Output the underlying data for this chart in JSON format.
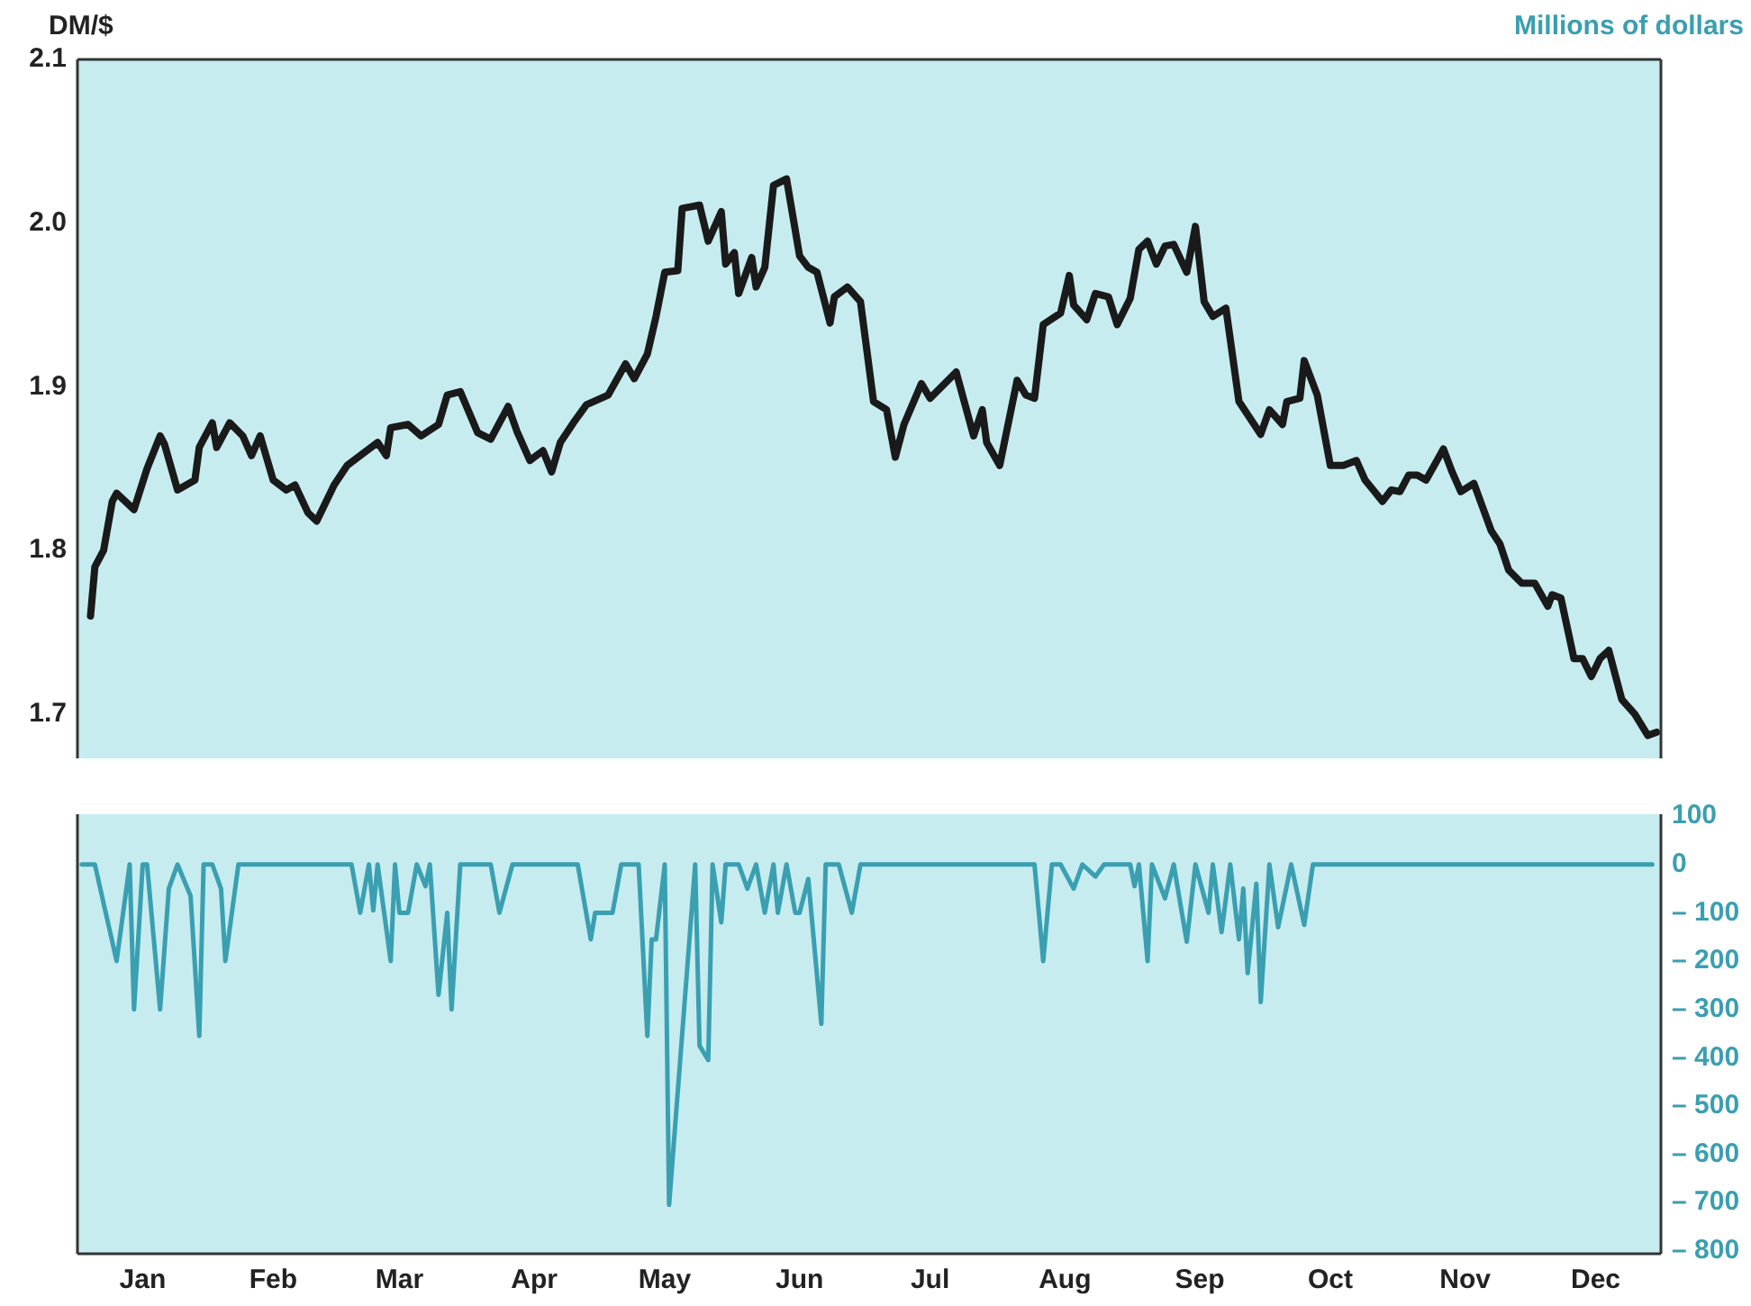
{
  "chart_data": [
    {
      "type": "line",
      "ylabel": "DM/$",
      "marker": "none",
      "tick_labels": "y",
      "xlim": [
        "--01-01",
        "--12-31"
      ],
      "ylim": [
        1.673,
        2.1
      ],
      "yticks": [
        1.7,
        1.8,
        1.9,
        {
          "value": 2.0,
          "label": "2.0"
        },
        2.1
      ],
      "series": [
        {
          "color": "#1a1a1a",
          "x": [
            "--01-04",
            "--01-05",
            "--01-07",
            "--01-09",
            "--01-10",
            "--01-14",
            "--01-17",
            "--01-20",
            "--01-21",
            "--01-24",
            "--01-28",
            "--01-29",
            "--02-01",
            "--02-02",
            "--02-05",
            "--02-08",
            "--02-10",
            "--02-12",
            "--02-15",
            "--02-18",
            "--02-20",
            "--02-23",
            "--02-25",
            "--03-01",
            "--03-04",
            "--03-11",
            "--03-13",
            "--03-14",
            "--03-18",
            "--03-21",
            "--03-25",
            "--03-27",
            "--03-30",
            "--04-03",
            "--04-06",
            "--04-10",
            "--04-12",
            "--04-15",
            "--04-18",
            "--04-20",
            "--04-22",
            "--04-25",
            "--04-28",
            "--05-03",
            "--05-07",
            "--05-09",
            "--05-12",
            "--05-14",
            "--05-16",
            "--05-19",
            "--05-20",
            "--05-24",
            "--05-26",
            "--05-29",
            "--05-30",
            "--06-01",
            "--06-02",
            "--06-05",
            "--06-06",
            "--06-08",
            "--06-10",
            "--06-13",
            "--06-16",
            "--06-18",
            "--06-20",
            "--06-23",
            "--06-24",
            "--06-27",
            "--06-30",
            "--07-03",
            "--07-06",
            "--07-08",
            "--07-10",
            "--07-14",
            "--07-16",
            "--07-22",
            "--07-26",
            "--07-28",
            "--07-29",
            "--08-01",
            "--08-05",
            "--08-07",
            "--08-09",
            "--08-11",
            "--08-15",
            "--08-17",
            "--08-18",
            "--08-21",
            "--08-23",
            "--08-26",
            "--08-28",
            "--08-31",
            "--09-02",
            "--09-04",
            "--09-06",
            "--09-08",
            "--09-10",
            "--09-13",
            "--09-15",
            "--09-17",
            "--09-19",
            "--09-22",
            "--09-25",
            "--09-30",
            "--10-02",
            "--10-05",
            "--10-06",
            "--10-09",
            "--10-10",
            "--10-13",
            "--10-16",
            "--10-19",
            "--10-22",
            "--10-24",
            "--10-28",
            "--10-30",
            "--11-01",
            "--11-03",
            "--11-05",
            "--11-07",
            "--11-11",
            "--11-13",
            "--11-15",
            "--11-18",
            "--11-22",
            "--11-24",
            "--11-26",
            "--11-29",
            "--12-02",
            "--12-05",
            "--12-06",
            "--12-08",
            "--12-11",
            "--12-13",
            "--12-15",
            "--12-17",
            "--12-19",
            "--12-22",
            "--12-25",
            "--12-28",
            "--12-30"
          ],
          "values": [
            1.76,
            1.79,
            1.8,
            1.83,
            1.835,
            1.825,
            1.85,
            1.87,
            1.865,
            1.837,
            1.843,
            1.863,
            1.878,
            1.863,
            1.878,
            1.87,
            1.858,
            1.87,
            1.843,
            1.837,
            1.84,
            1.823,
            1.818,
            1.84,
            1.852,
            1.866,
            1.858,
            1.875,
            1.877,
            1.87,
            1.877,
            1.895,
            1.897,
            1.872,
            1.868,
            1.888,
            1.873,
            1.855,
            1.861,
            1.848,
            1.866,
            1.878,
            1.889,
            1.895,
            1.914,
            1.905,
            1.92,
            1.943,
            1.97,
            1.971,
            2.009,
            2.011,
            1.989,
            2.007,
            1.975,
            1.982,
            1.957,
            1.979,
            1.961,
            1.973,
            2.023,
            2.027,
            1.98,
            1.973,
            1.97,
            1.939,
            1.955,
            1.961,
            1.952,
            1.891,
            1.886,
            1.857,
            1.877,
            1.902,
            1.893,
            1.909,
            1.87,
            1.886,
            1.866,
            1.852,
            1.904,
            1.895,
            1.893,
            1.938,
            1.945,
            1.968,
            1.95,
            1.941,
            1.957,
            1.955,
            1.938,
            1.954,
            1.984,
            1.989,
            1.975,
            1.986,
            1.987,
            1.97,
            1.998,
            1.952,
            1.943,
            1.948,
            1.891,
            1.871,
            1.886,
            1.877,
            1.891,
            1.893,
            1.916,
            1.895,
            1.852,
            1.852,
            1.855,
            1.843,
            1.83,
            1.837,
            1.836,
            1.846,
            1.846,
            1.843,
            1.862,
            1.848,
            1.836,
            1.841,
            1.812,
            1.804,
            1.788,
            1.78,
            1.78,
            1.766,
            1.773,
            1.771,
            1.734,
            1.734,
            1.723,
            1.734,
            1.739,
            1.709,
            1.7,
            1.687,
            1.689
          ]
        }
      ]
    },
    {
      "type": "line",
      "y2label": "Millions of dollars",
      "marker": "none",
      "xlim": [
        "--01-01",
        "--12-31"
      ],
      "xticks": [
        {
          "value": "--01-16",
          "label": "Jan"
        },
        {
          "value": "--02-15",
          "label": "Feb"
        },
        {
          "value": "--03-16",
          "label": "Mar"
        },
        {
          "value": "--04-16",
          "label": "Apr"
        },
        {
          "value": "--05-16",
          "label": "May"
        },
        {
          "value": "--06-16",
          "label": "Jun"
        },
        {
          "value": "--07-16",
          "label": "Jul"
        },
        {
          "value": "--08-16",
          "label": "Aug"
        },
        {
          "value": "--09-16",
          "label": "Sep"
        },
        {
          "value": "--10-16",
          "label": "Oct"
        },
        {
          "value": "--11-16",
          "label": "Nov"
        },
        {
          "value": "--12-16",
          "label": "Dec"
        }
      ],
      "y2lim": [
        -806,
        104
      ],
      "y2ticks": [
        100,
        0,
        {
          "value": -100,
          "label": "– 100"
        },
        {
          "value": -200,
          "label": "– 200"
        },
        {
          "value": -300,
          "label": "– 300"
        },
        {
          "value": -400,
          "label": "– 400"
        },
        {
          "value": -500,
          "label": "– 500"
        },
        {
          "value": -600,
          "label": "– 600"
        },
        {
          "value": -700,
          "label": "– 700"
        },
        {
          "value": -800,
          "label": "– 800"
        }
      ],
      "series": [
        {
          "color": "#3a9fb0",
          "axis": "y2",
          "x": [
            "--01-02",
            "--01-05",
            "--01-10",
            "--01-13",
            "--01-14",
            "--01-16",
            "--01-17",
            "--01-20",
            "--01-22",
            "--01-24",
            "--01-27",
            "--01-29",
            "--01-30",
            "--02-01",
            "--02-03",
            "--02-04",
            "--02-07",
            "--03-05",
            "--03-07",
            "--03-09",
            "--03-10",
            "--03-11",
            "--03-14",
            "--03-15",
            "--03-16",
            "--03-18",
            "--03-20",
            "--03-22",
            "--03-23",
            "--03-25",
            "--03-27",
            "--03-28",
            "--03-30",
            "--04-06",
            "--04-08",
            "--04-11",
            "--04-26",
            "--04-29",
            "--04-30",
            "--05-04",
            "--05-06",
            "--05-10",
            "--05-12",
            "--05-13",
            "--05-14",
            "--05-16",
            "--05-17",
            "--05-23",
            "--05-24",
            "--05-26",
            "--05-27",
            "--05-29",
            "--05-30",
            "--06-02",
            "--06-04",
            "--06-06",
            "--06-08",
            "--06-10",
            "--06-11",
            "--06-13",
            "--06-15",
            "--06-16",
            "--06-18",
            "--06-21",
            "--06-22",
            "--06-25",
            "--06-28",
            "--06-30",
            "--08-09",
            "--08-11",
            "--08-13",
            "--08-15",
            "--08-18",
            "--08-20",
            "--08-23",
            "--08-25",
            "--08-31",
            "--09-01",
            "--09-02",
            "--09-04",
            "--09-05",
            "--09-08",
            "--09-10",
            "--09-13",
            "--09-15",
            "--09-18",
            "--09-19",
            "--09-21",
            "--09-23",
            "--09-25",
            "--09-26",
            "--09-27",
            "--09-29",
            "--09-30",
            "--10-02",
            "--10-04",
            "--10-07",
            "--10-10",
            "--10-12",
            "--12-29"
          ],
          "values": [
            0,
            0,
            -200,
            0,
            -300,
            0,
            0,
            -300,
            -50,
            0,
            -65,
            -355,
            0,
            0,
            -50,
            -200,
            0,
            0,
            -100,
            0,
            -95,
            0,
            -200,
            0,
            -100,
            -100,
            0,
            -45,
            0,
            -270,
            -100,
            -300,
            0,
            0,
            -100,
            0,
            0,
            -155,
            -100,
            -100,
            0,
            0,
            -355,
            -155,
            -155,
            0,
            -705,
            0,
            -375,
            -405,
            0,
            -120,
            0,
            0,
            -50,
            0,
            -100,
            0,
            -100,
            0,
            -100,
            -100,
            -30,
            -330,
            0,
            0,
            -100,
            0,
            0,
            -200,
            0,
            0,
            -50,
            0,
            -25,
            0,
            0,
            -45,
            0,
            -200,
            0,
            -70,
            0,
            -160,
            0,
            -100,
            0,
            -140,
            0,
            -155,
            -50,
            -225,
            -40,
            -285,
            0,
            -130,
            0,
            -125,
            0,
            0
          ]
        }
      ]
    }
  ]
}
